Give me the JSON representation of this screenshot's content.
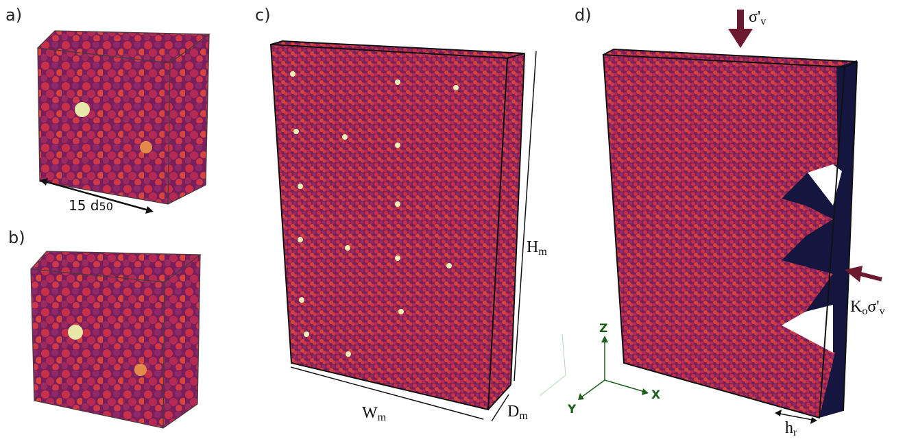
{
  "panels": {
    "a": {
      "label": "a)",
      "dimension": {
        "main": "15 d",
        "sub": "50"
      }
    },
    "b": {
      "label": "b)"
    },
    "c": {
      "label": "c)",
      "width": {
        "main": "W",
        "sub": "m"
      },
      "depth": {
        "main": "D",
        "sub": "m"
      },
      "height": {
        "main": "H",
        "sub": "m"
      }
    },
    "d": {
      "label": "d)",
      "vertical_stress": {
        "main": "σ'",
        "sub": "v"
      },
      "lateral_stress": {
        "coefficient": "K",
        "coefficient_sub": "o",
        "stress": "σ'",
        "stress_sub": "v"
      },
      "rib_height": {
        "main": "h",
        "sub": "r"
      },
      "axes": {
        "z": "Z",
        "x": "X",
        "y": "Y"
      }
    }
  }
}
